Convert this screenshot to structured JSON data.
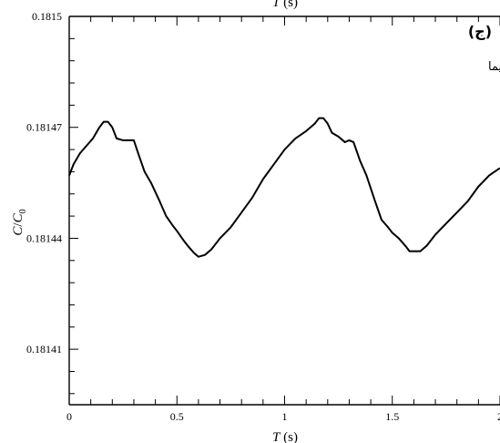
{
  "chart_data": {
    "type": "line",
    "title": "",
    "panel_tag": "(ج)",
    "annotation": "فصل مشترک اندوتلیم - اینتیما",
    "top_axis_title": "T (s)",
    "xlabel": "T (s)",
    "ylabel": "C/C0",
    "xlim": [
      0,
      2
    ],
    "ylim": [
      0.181395,
      0.1815
    ],
    "x_ticks": [
      0,
      0.5,
      1,
      1.5,
      2
    ],
    "x_tick_labels": [
      "0",
      "0.5",
      "1",
      "1.5",
      "2"
    ],
    "y_ticks": [
      0.18141,
      0.18144,
      0.18147,
      0.1815
    ],
    "y_tick_labels": [
      "0.18141",
      "0.18144",
      "0.18147",
      "0.1815"
    ],
    "grid": false,
    "series": [
      {
        "points": [
          [
            0.0,
            0.181457
          ],
          [
            0.02,
            0.18146
          ],
          [
            0.05,
            0.181463
          ],
          [
            0.08,
            0.181465
          ],
          [
            0.11,
            0.181467
          ],
          [
            0.14,
            0.18147
          ],
          [
            0.16,
            0.1814715
          ],
          [
            0.18,
            0.1814715
          ],
          [
            0.2,
            0.18147
          ],
          [
            0.22,
            0.181467
          ],
          [
            0.25,
            0.1814665
          ],
          [
            0.28,
            0.1814665
          ],
          [
            0.3,
            0.1814665
          ],
          [
            0.32,
            0.181463
          ],
          [
            0.35,
            0.181458
          ],
          [
            0.38,
            0.181455
          ],
          [
            0.42,
            0.18145
          ],
          [
            0.45,
            0.181446
          ],
          [
            0.48,
            0.1814435
          ],
          [
            0.5,
            0.181442
          ],
          [
            0.53,
            0.1814395
          ],
          [
            0.55,
            0.181438
          ],
          [
            0.58,
            0.181436
          ],
          [
            0.6,
            0.181435
          ],
          [
            0.63,
            0.1814355
          ],
          [
            0.66,
            0.181437
          ],
          [
            0.7,
            0.18144
          ],
          [
            0.75,
            0.181443
          ],
          [
            0.8,
            0.181447
          ],
          [
            0.85,
            0.181451
          ],
          [
            0.9,
            0.181456
          ],
          [
            0.95,
            0.18146
          ],
          [
            1.0,
            0.181464
          ],
          [
            1.05,
            0.181467
          ],
          [
            1.1,
            0.181469
          ],
          [
            1.14,
            0.181471
          ],
          [
            1.16,
            0.1814725
          ],
          [
            1.18,
            0.1814725
          ],
          [
            1.2,
            0.181471
          ],
          [
            1.22,
            0.1814685
          ],
          [
            1.25,
            0.1814675
          ],
          [
            1.28,
            0.181466
          ],
          [
            1.3,
            0.1814665
          ],
          [
            1.32,
            0.181466
          ],
          [
            1.35,
            0.181461
          ],
          [
            1.38,
            0.181457
          ],
          [
            1.42,
            0.18145
          ],
          [
            1.45,
            0.181445
          ],
          [
            1.48,
            0.181443
          ],
          [
            1.5,
            0.1814415
          ],
          [
            1.53,
            0.18144
          ],
          [
            1.56,
            0.181438
          ],
          [
            1.58,
            0.1814365
          ],
          [
            1.6,
            0.1814365
          ],
          [
            1.63,
            0.1814365
          ],
          [
            1.66,
            0.181438
          ],
          [
            1.7,
            0.181441
          ],
          [
            1.75,
            0.181444
          ],
          [
            1.8,
            0.181447
          ],
          [
            1.85,
            0.18145
          ],
          [
            1.9,
            0.181454
          ],
          [
            1.95,
            0.181457
          ],
          [
            2.0,
            0.181459
          ]
        ]
      }
    ]
  }
}
